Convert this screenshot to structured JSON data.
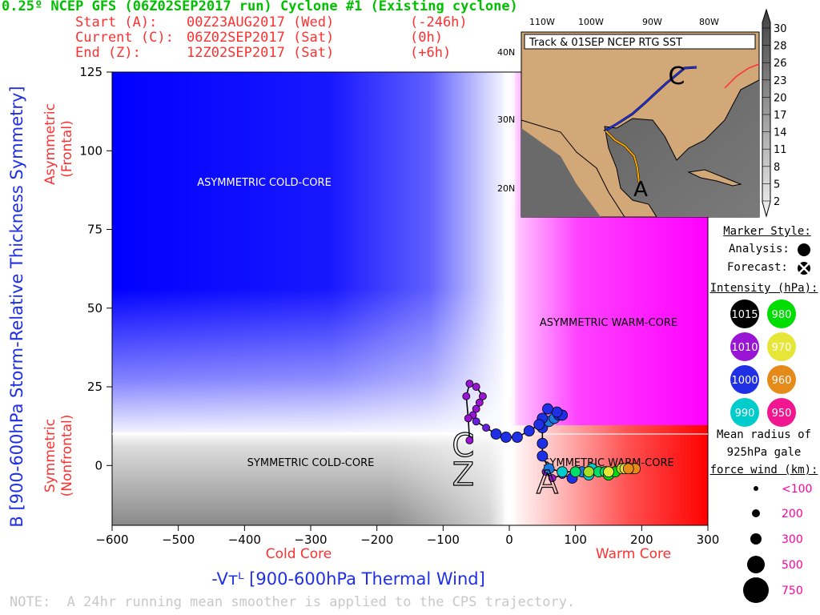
{
  "title": "0.25º NCEP GFS (06Z02SEP2017 run) Cyclone #1 (Existing cyclone)",
  "header_lines": [
    {
      "label": "Start (A):",
      "date": "00Z23AUG2017 (Wed)",
      "offset": "(-246h)"
    },
    {
      "label": "Current (C):",
      "date": "06Z02SEP2017 (Sat)",
      "offset": "(0h)"
    },
    {
      "label": "End (Z):",
      "date": "12Z02SEP2017 (Sat)",
      "offset": "(+6h)"
    }
  ],
  "chart_data": {
    "type": "scatter",
    "xlabel": "-Vᴛᴸ [900-600hPa Thermal Wind]",
    "ylabel": "B [900-600hPa Storm-Relative Thickness Symmetry]",
    "xlim": [
      -600,
      300
    ],
    "ylim": [
      -19,
      125
    ],
    "x_ticks": [
      -600,
      -500,
      -400,
      -300,
      -200,
      -100,
      0,
      100,
      200,
      300
    ],
    "y_ticks": [
      0,
      25,
      50,
      75,
      100,
      125
    ],
    "x_side_labels": [
      "Cold Core",
      "Warm Core"
    ],
    "y_side_labels": [
      "Asymmetric",
      "(Frontal)",
      "Symmetric",
      "(Nonfrontal)"
    ],
    "quadrant_labels": [
      "ASYMMETRIC COLD-CORE",
      "ASYMMETRIC WARM-CORE",
      "SYMMETRIC COLD-CORE",
      "SYMMETRIC WARM-CORE"
    ],
    "threshold_B": 10,
    "markers": {
      "start": "A",
      "current": "C",
      "end": "Z"
    },
    "trajectory": [
      {
        "x": 55,
        "y": -2,
        "p": 1010
      },
      {
        "x": 65,
        "y": -4,
        "p": 1010
      },
      {
        "x": 80,
        "y": -3,
        "p": 1005
      },
      {
        "x": 95,
        "y": -4,
        "p": 1000
      },
      {
        "x": 110,
        "y": -2,
        "p": 995
      },
      {
        "x": 120,
        "y": -3,
        "p": 990
      },
      {
        "x": 125,
        "y": -1,
        "p": 990
      },
      {
        "x": 135,
        "y": -2,
        "p": 985
      },
      {
        "x": 145,
        "y": -2,
        "p": 985
      },
      {
        "x": 150,
        "y": -3,
        "p": 980
      },
      {
        "x": 160,
        "y": -2,
        "p": 980
      },
      {
        "x": 170,
        "y": -1,
        "p": 975
      },
      {
        "x": 175,
        "y": -1,
        "p": 970
      },
      {
        "x": 185,
        "y": -1,
        "p": 970
      },
      {
        "x": 190,
        "y": -1,
        "p": 960
      },
      {
        "x": 180,
        "y": -1,
        "p": 960
      },
      {
        "x": 150,
        "y": -2,
        "p": 970
      },
      {
        "x": 120,
        "y": -2,
        "p": 975
      },
      {
        "x": 100,
        "y": -2,
        "p": 985
      },
      {
        "x": 80,
        "y": -2,
        "p": 990
      },
      {
        "x": 60,
        "y": -1,
        "p": 995
      },
      {
        "x": 50,
        "y": 3,
        "p": 1000
      },
      {
        "x": 50,
        "y": 7,
        "p": 1000
      },
      {
        "x": 50,
        "y": 12,
        "p": 1000
      },
      {
        "x": 60,
        "y": 14,
        "p": 995
      },
      {
        "x": 68,
        "y": 15,
        "p": 995
      },
      {
        "x": 75,
        "y": 16,
        "p": 1000
      },
      {
        "x": 80,
        "y": 16,
        "p": 1000
      },
      {
        "x": 72,
        "y": 17,
        "p": 1000
      },
      {
        "x": 58,
        "y": 18,
        "p": 1000
      },
      {
        "x": 50,
        "y": 15,
        "p": 1000
      },
      {
        "x": 45,
        "y": 13,
        "p": 1000
      },
      {
        "x": 30,
        "y": 11,
        "p": 1000
      },
      {
        "x": 12,
        "y": 9,
        "p": 1000
      },
      {
        "x": -5,
        "y": 9,
        "p": 1000
      },
      {
        "x": -20,
        "y": 10,
        "p": 1000
      },
      {
        "x": -35,
        "y": 12,
        "p": 1005
      },
      {
        "x": -50,
        "y": 14,
        "p": 1005
      },
      {
        "x": -55,
        "y": 16,
        "p": 1010
      },
      {
        "x": -50,
        "y": 18,
        "p": 1010
      },
      {
        "x": -45,
        "y": 20,
        "p": 1010
      },
      {
        "x": -40,
        "y": 22,
        "p": 1010
      },
      {
        "x": -50,
        "y": 25,
        "p": 1010
      },
      {
        "x": -60,
        "y": 26,
        "p": 1010
      },
      {
        "x": -65,
        "y": 22,
        "p": 1010
      },
      {
        "x": -62,
        "y": 15,
        "p": 1010
      },
      {
        "x": -60,
        "y": 8,
        "p": 1010
      }
    ]
  },
  "inset_map": {
    "title": "Track & 01SEP NCEP RTG SST",
    "lon_labels": [
      "110W",
      "100W",
      "90W",
      "80W"
    ],
    "lat_labels": [
      "40N",
      "30N",
      "20N"
    ],
    "colorbar": [
      "30",
      "28",
      "26",
      "23",
      "20",
      "17",
      "14",
      "11",
      "8",
      "5",
      "2"
    ]
  },
  "legend": {
    "marker_style_title": "Marker Style:",
    "analysis_label": "Analysis:",
    "forecast_label": "Forecast:",
    "intensity_title": "Intensity (hPa):",
    "intensity": [
      {
        "v": "1015",
        "color": "#000000"
      },
      {
        "v": "980",
        "color": "#00dd00"
      },
      {
        "v": "1010",
        "color": "#9a14d6"
      },
      {
        "v": "970",
        "color": "#e6e639"
      },
      {
        "v": "1000",
        "color": "#1f2fe6"
      },
      {
        "v": "960",
        "color": "#e68a1a"
      },
      {
        "v": "990",
        "color": "#00cccc"
      },
      {
        "v": "950",
        "color": "#f01690"
      }
    ],
    "radius_title": [
      "Mean radius of",
      "925hPa gale",
      "force wind (km):"
    ],
    "radius_sizes": [
      "<100",
      "200",
      "300",
      "500",
      "750"
    ]
  },
  "note": "NOTE:  A 24hr running mean smoother is applied to the CPS trajectory."
}
